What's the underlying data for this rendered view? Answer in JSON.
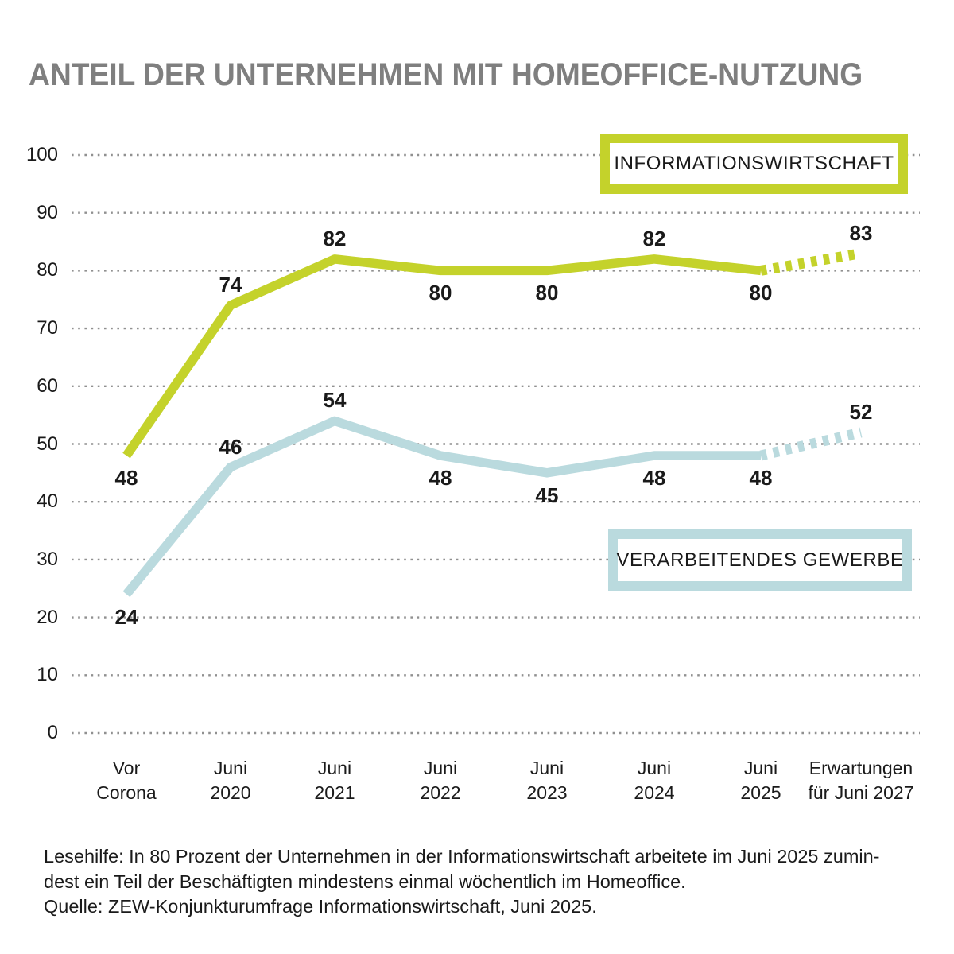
{
  "chart_data": {
    "type": "line",
    "title": "ANTEIL DER UNTERNEHMEN MIT HOMEOFFICE-NUTZUNG",
    "categories": [
      "Vor Corona",
      "Juni 2020",
      "Juni 2021",
      "Juni 2022",
      "Juni 2023",
      "Juni 2024",
      "Juni 2025",
      "Erwartungen für Juni 2027"
    ],
    "x_tick_lines": [
      [
        "Vor",
        "Corona"
      ],
      [
        "Juni",
        "2020"
      ],
      [
        "Juni",
        "2021"
      ],
      [
        "Juni",
        "2022"
      ],
      [
        "Juni",
        "2023"
      ],
      [
        "Juni",
        "2024"
      ],
      [
        "Juni",
        "2025"
      ],
      [
        "Erwartungen",
        "für Juni 2027"
      ]
    ],
    "ylim": [
      0,
      100
    ],
    "yticks": [
      0,
      10,
      20,
      30,
      40,
      50,
      60,
      70,
      80,
      90,
      100
    ],
    "grid": "dotted-horizontal",
    "legend_position": "boxed-on-plot",
    "series": [
      {
        "name": "INFORMATIONSWIRTSCHAFT",
        "color": "#c4d22b",
        "values": [
          48,
          74,
          82,
          80,
          80,
          82,
          80,
          83
        ],
        "dashed_from_index": 6,
        "label_positions": [
          "below",
          "above",
          "above",
          "below",
          "below",
          "above",
          "below",
          "above"
        ]
      },
      {
        "name": "VERARBEITENDES GEWERBE",
        "color": "#badade",
        "values": [
          24,
          46,
          54,
          48,
          45,
          48,
          48,
          52
        ],
        "dashed_from_index": 6,
        "label_positions": [
          "below",
          "above",
          "above",
          "below",
          "below",
          "below",
          "below",
          "above"
        ]
      }
    ]
  },
  "footer": {
    "lines": [
      "Lesehilfe: In 80 Prozent der Unternehmen in der Informationswirtschaft arbeitete im Juni 2025 zumin-",
      "dest ein Teil der Beschäftigten mindestens einmal wöchentlich im Homeoffice.",
      "Quelle: ZEW-Konjunkturumfrage Informationswirtschaft, Juni 2025."
    ]
  },
  "colors": {
    "series_informationswirtschaft": "#c4d22b",
    "series_verarbeitendes_gewerbe": "#badade",
    "gridline": "#909090",
    "title": "#7f7f7f",
    "text": "#1a1a1a"
  }
}
